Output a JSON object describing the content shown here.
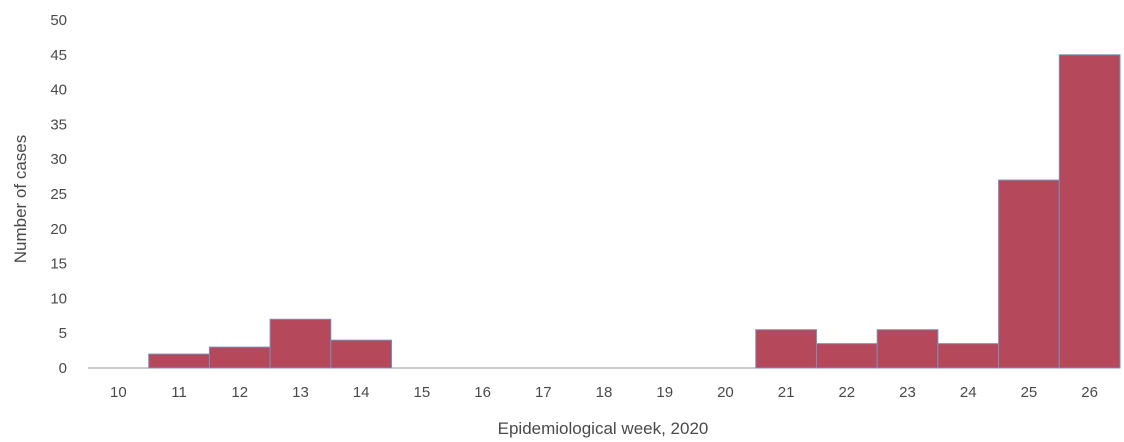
{
  "chart_data": {
    "type": "bar",
    "title": "",
    "xlabel": "Epidemiological week, 2020",
    "ylabel": "Number of cases",
    "categories": [
      "10",
      "11",
      "12",
      "13",
      "14",
      "15",
      "16",
      "17",
      "18",
      "19",
      "20",
      "21",
      "22",
      "23",
      "24",
      "25",
      "26"
    ],
    "values": [
      0,
      2,
      3,
      7,
      4,
      0,
      0,
      0,
      0,
      0,
      0,
      5.5,
      3.5,
      5.5,
      3.5,
      27,
      45
    ],
    "ylim": [
      0,
      50
    ],
    "yticks": [
      0,
      5,
      10,
      15,
      20,
      25,
      30,
      35,
      40,
      45,
      50
    ],
    "grid": false,
    "legend": "none",
    "bar_color": "#b5485a",
    "bar_edge_color": "#7a8fb8"
  }
}
